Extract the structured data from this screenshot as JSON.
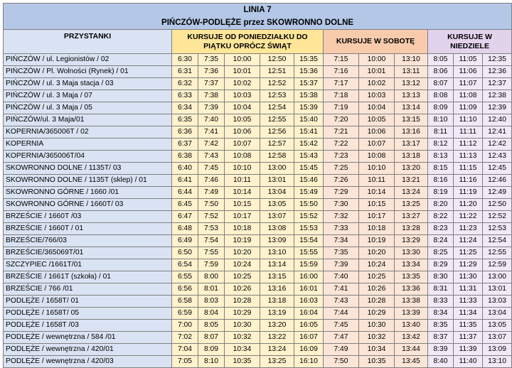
{
  "title": {
    "line": "LINIA 7",
    "route": "PIŃCZÓW-PODLĘŻE przez SKOWRONNO DOLNE"
  },
  "headers": {
    "stops": "PRZYSTANKI",
    "weekday": "KURSUJE OD PONIEDZIAŁKU DO PIĄTKU OPRÓCZ ŚWIĄT",
    "saturday": "KURSUJE W SOBOTĘ",
    "sunday": "KURSUJE W NIEDZIELE"
  },
  "colors": {
    "title_bg": "#b4c7e7",
    "stops_bg": "#dae3f3",
    "weekday_bg": "#fff2cc",
    "saturday_bg": "#fbe5d6",
    "sunday_bg": "#f1e9f7"
  },
  "rows": [
    {
      "stop": "PIŃCZÓW / ul. Legionistów / 02",
      "wd": [
        "6:30",
        "7:35",
        "10:00",
        "12:50",
        "15:35"
      ],
      "sa": [
        "7:15",
        "10:00",
        "13:10"
      ],
      "su": [
        "8:05",
        "11:05",
        "12:35"
      ]
    },
    {
      "stop": "PIŃCZÓW / Pl. Wolności (Rynek) / 01",
      "wd": [
        "6:31",
        "7:36",
        "10:01",
        "12:51",
        "15:36"
      ],
      "sa": [
        "7:16",
        "10:01",
        "13:11"
      ],
      "su": [
        "8:06",
        "11:06",
        "12:36"
      ]
    },
    {
      "stop": "PIŃCZÓW / ul. 3 Maja stacja / 03",
      "wd": [
        "6:32",
        "7:37",
        "10:02",
        "12:52",
        "15:37"
      ],
      "sa": [
        "7:17",
        "10:02",
        "13:12"
      ],
      "su": [
        "8:07",
        "11:07",
        "12:37"
      ]
    },
    {
      "stop": "PIŃCZÓW / ul. 3 Maja / 07",
      "wd": [
        "6:33",
        "7:38",
        "10:03",
        "12:53",
        "15:38"
      ],
      "sa": [
        "7:18",
        "10:03",
        "13:13"
      ],
      "su": [
        "8:08",
        "11:08",
        "12:38"
      ]
    },
    {
      "stop": "PIŃCZÓW / ul. 3 Maja / 05",
      "wd": [
        "6:34",
        "7:39",
        "10:04",
        "12:54",
        "15:39"
      ],
      "sa": [
        "7:19",
        "10:04",
        "13:14"
      ],
      "su": [
        "8:09",
        "11:09",
        "12:39"
      ]
    },
    {
      "stop": "PIŃCZÓW/ul. 3 Maja/01",
      "wd": [
        "6:35",
        "7:40",
        "10:05",
        "12:55",
        "15:40"
      ],
      "sa": [
        "7:20",
        "10:05",
        "13:15"
      ],
      "su": [
        "8:10",
        "11:10",
        "12:40"
      ]
    },
    {
      "stop": "KOPERNIA/365006T / 02",
      "wd": [
        "6:36",
        "7:41",
        "10:06",
        "12:56",
        "15:41"
      ],
      "sa": [
        "7:21",
        "10:06",
        "13:16"
      ],
      "su": [
        "8:11",
        "11:11",
        "12:41"
      ]
    },
    {
      "stop": "KOPERNIA",
      "wd": [
        "6:37",
        "7:42",
        "10:07",
        "12:57",
        "15:42"
      ],
      "sa": [
        "7:22",
        "10:07",
        "13:17"
      ],
      "su": [
        "8:12",
        "11:12",
        "12:42"
      ]
    },
    {
      "stop": "KOPERNIA/365006T/04",
      "wd": [
        "6:38",
        "7:43",
        "10:08",
        "12:58",
        "15:43"
      ],
      "sa": [
        "7:23",
        "10:08",
        "13:18"
      ],
      "su": [
        "8:13",
        "11:13",
        "12:43"
      ]
    },
    {
      "stop": "SKOWRONNO DOLNE / 1135T/ 03",
      "wd": [
        "6:40",
        "7:45",
        "10:10",
        "13:00",
        "15:45"
      ],
      "sa": [
        "7:25",
        "10:10",
        "13:20"
      ],
      "su": [
        "8:15",
        "11:15",
        "12:45"
      ]
    },
    {
      "stop": "SKOWRONNO DOLNE / 1135T (sklep) / 01",
      "wd": [
        "6:41",
        "7:46",
        "10:11",
        "13:01",
        "15:46"
      ],
      "sa": [
        "7:26",
        "10:11",
        "13:21"
      ],
      "su": [
        "8:16",
        "11:16",
        "12:46"
      ]
    },
    {
      "stop": "SKOWRONNO GÓRNE / 1660 /01",
      "wd": [
        "6:44",
        "7:49",
        "10:14",
        "13:04",
        "15:49"
      ],
      "sa": [
        "7:29",
        "10:14",
        "13:24"
      ],
      "su": [
        "8:19",
        "11:19",
        "12:49"
      ]
    },
    {
      "stop": "SKOWRONNO GÓRNE / 1660T/ 03",
      "wd": [
        "6:45",
        "7:50",
        "10:15",
        "13:05",
        "15:50"
      ],
      "sa": [
        "7:30",
        "10:15",
        "13:25"
      ],
      "su": [
        "8:20",
        "11:20",
        "12:50"
      ]
    },
    {
      "stop": "BRZEŚCIE / 1660T /03",
      "wd": [
        "6:47",
        "7:52",
        "10:17",
        "13:07",
        "15:52"
      ],
      "sa": [
        "7:32",
        "10:17",
        "13:27"
      ],
      "su": [
        "8:22",
        "11:22",
        "12:52"
      ]
    },
    {
      "stop": "BRZEŚCIE / 1660T / 01",
      "wd": [
        "6:48",
        "7:53",
        "10:18",
        "13:08",
        "15:53"
      ],
      "sa": [
        "7:33",
        "10:18",
        "13:28"
      ],
      "su": [
        "8:23",
        "11:23",
        "12:53"
      ]
    },
    {
      "stop": "BRZEŚCIE/766/03",
      "wd": [
        "6:49",
        "7:54",
        "10:19",
        "13:09",
        "15:54"
      ],
      "sa": [
        "7:34",
        "10:19",
        "13:29"
      ],
      "su": [
        "8:24",
        "11:24",
        "12:54"
      ]
    },
    {
      "stop": "BRZEŚCIE/365069T/01",
      "wd": [
        "6:50",
        "7:55",
        "10:20",
        "13:10",
        "15:55"
      ],
      "sa": [
        "7:35",
        "10:20",
        "13:30"
      ],
      "su": [
        "8:25",
        "11:25",
        "12:55"
      ]
    },
    {
      "stop": "SZCZYPIEC /1661T/01",
      "wd": [
        "6:54",
        "7:59",
        "10:24",
        "13:14",
        "15:59"
      ],
      "sa": [
        "7:39",
        "10:24",
        "13:34"
      ],
      "su": [
        "8:29",
        "11:29",
        "12:59"
      ]
    },
    {
      "stop": "BRZEŚCIE / 1661T (szkoła) / 01",
      "wd": [
        "6:55",
        "8:00",
        "10:25",
        "13:15",
        "16:00"
      ],
      "sa": [
        "7:40",
        "10:25",
        "13:35"
      ],
      "su": [
        "8:30",
        "11:30",
        "13:00"
      ]
    },
    {
      "stop": "BRZEŚCIE / 766 /01",
      "wd": [
        "6:56",
        "8:01",
        "10:26",
        "13:16",
        "16:01"
      ],
      "sa": [
        "7:41",
        "10:26",
        "13:36"
      ],
      "su": [
        "8:31",
        "11:31",
        "13:01"
      ]
    },
    {
      "stop": "PODLĘŻE / 1658T/ 01",
      "wd": [
        "6:58",
        "8:03",
        "10:28",
        "13:18",
        "16:03"
      ],
      "sa": [
        "7:43",
        "10:28",
        "13:38"
      ],
      "su": [
        "8:33",
        "11:33",
        "13:03"
      ]
    },
    {
      "stop": "PODLĘŻE / 1658T/ 05",
      "wd": [
        "6:59",
        "8:04",
        "10:29",
        "13:19",
        "16:04"
      ],
      "sa": [
        "7:44",
        "10:29",
        "13:39"
      ],
      "su": [
        "8:34",
        "11:34",
        "13:04"
      ]
    },
    {
      "stop": "PODLĘŻE / 1658T /03",
      "wd": [
        "7:00",
        "8:05",
        "10:30",
        "13:20",
        "16:05"
      ],
      "sa": [
        "7:45",
        "10:30",
        "13:40"
      ],
      "su": [
        "8:35",
        "11:35",
        "13:05"
      ]
    },
    {
      "stop": "PODLĘŻE / wewnętrzna / 584 /01",
      "wd": [
        "7:02",
        "8:07",
        "10:32",
        "13:22",
        "16:07"
      ],
      "sa": [
        "7:47",
        "10:32",
        "13:42"
      ],
      "su": [
        "8:37",
        "11:37",
        "13:07"
      ]
    },
    {
      "stop": "PODLĘŻE / wewnętrzna / 420/01",
      "wd": [
        "7:04",
        "8:09",
        "10:34",
        "13:24",
        "16:09"
      ],
      "sa": [
        "7:49",
        "10:34",
        "13:44"
      ],
      "su": [
        "8:39",
        "11:39",
        "13:09"
      ]
    },
    {
      "stop": "PODLĘŻE / wewnętrzna / 420/03",
      "wd": [
        "7:05",
        "8:10",
        "10:35",
        "13:25",
        "16:10"
      ],
      "sa": [
        "7:50",
        "10:35",
        "13:45"
      ],
      "su": [
        "8:40",
        "11:40",
        "13:10"
      ]
    }
  ]
}
